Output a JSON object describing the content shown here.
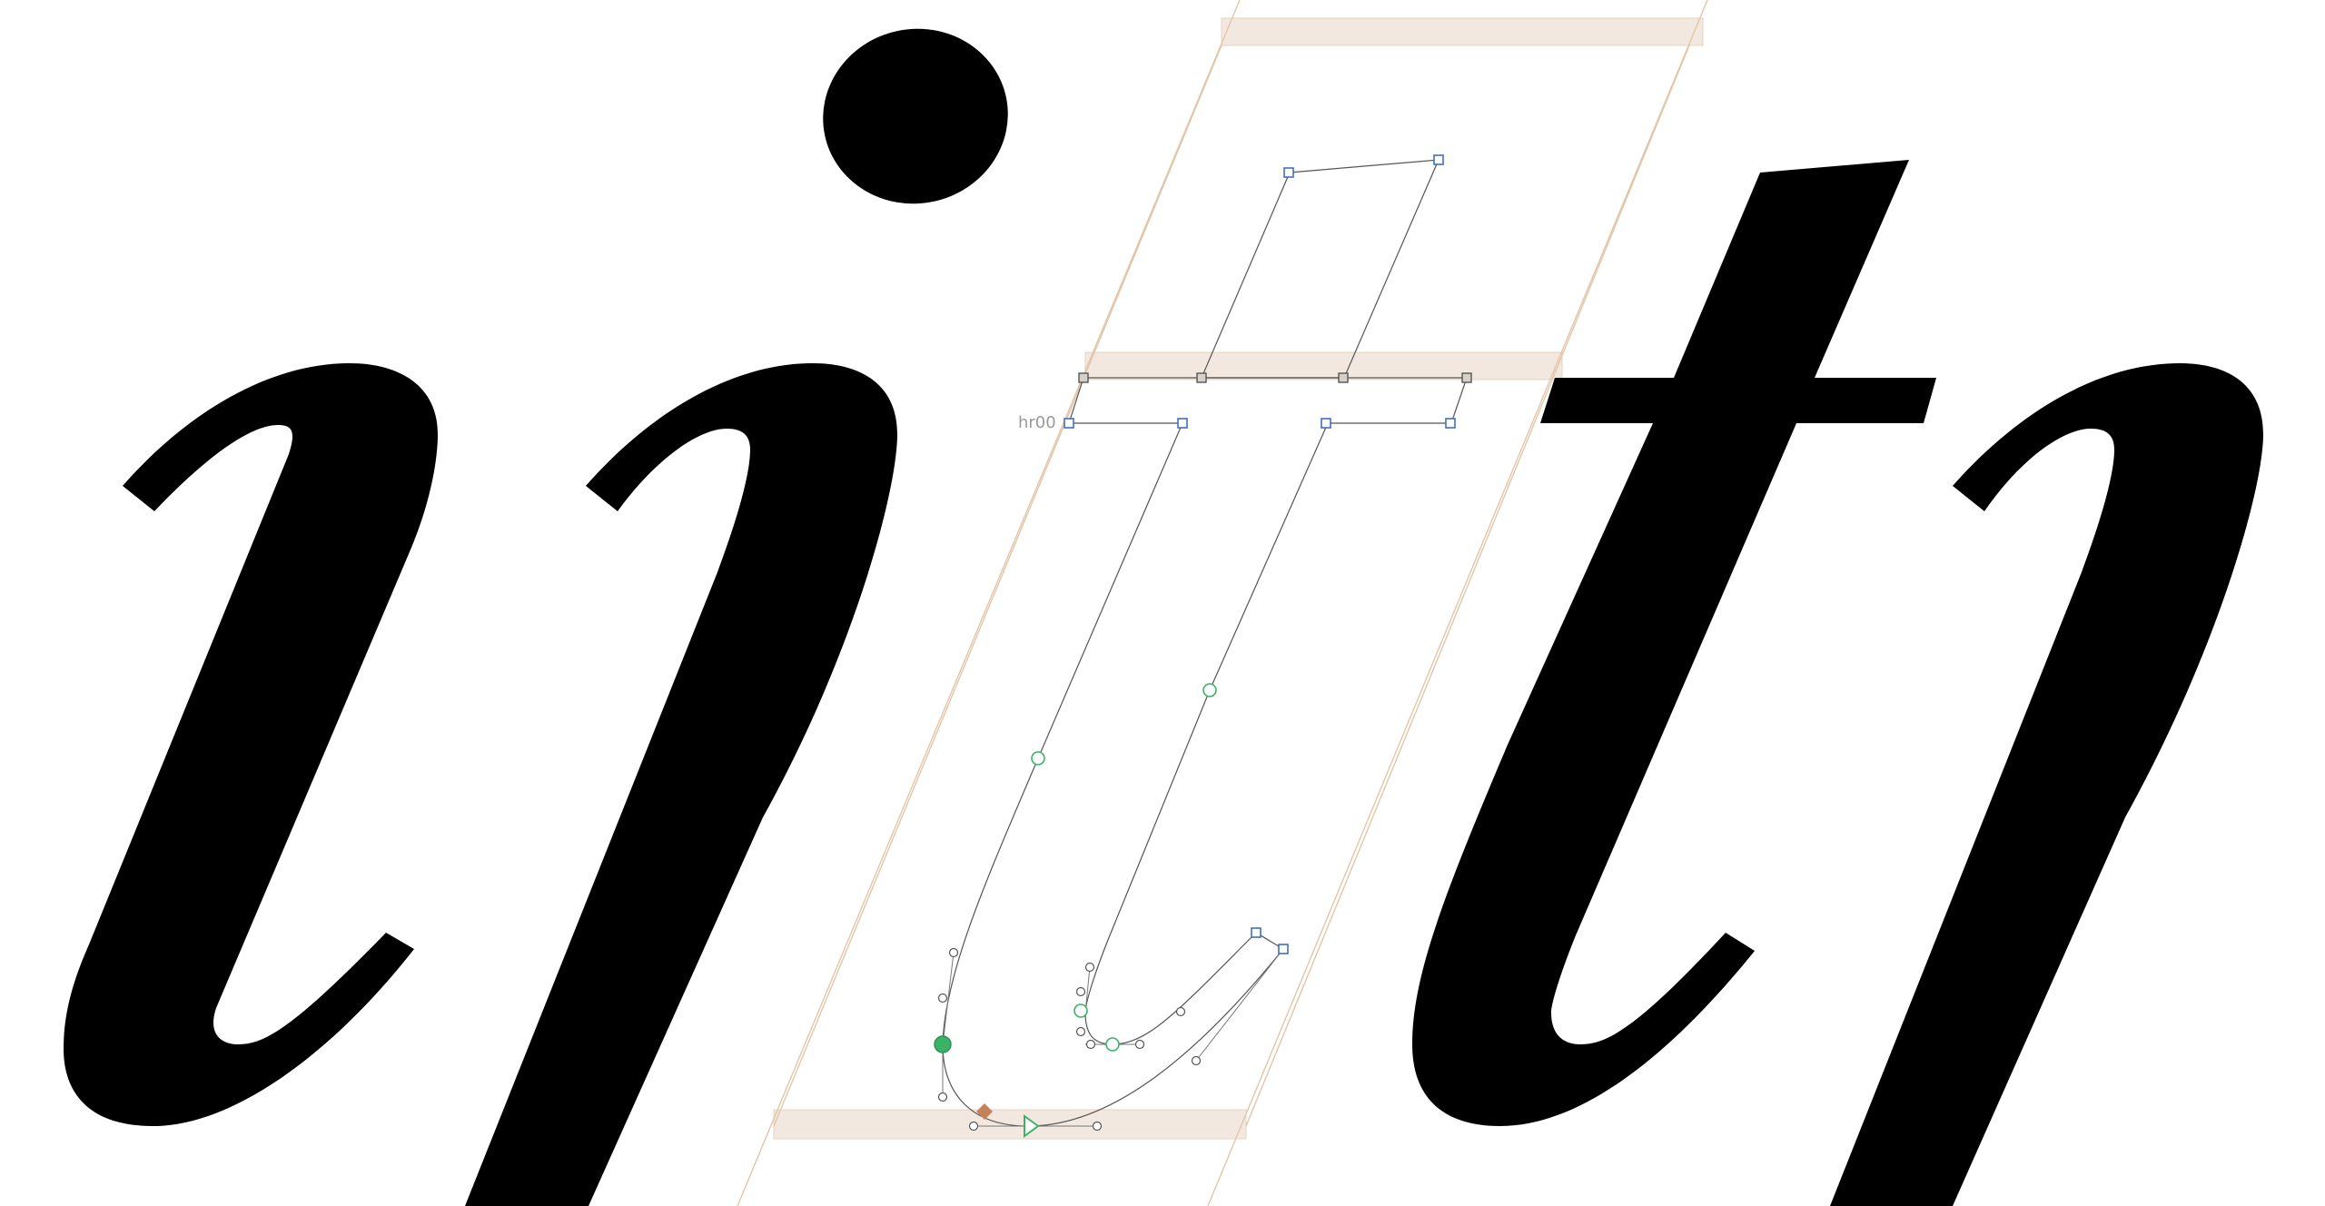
{
  "app": {
    "view": "glyph-edit-canvas",
    "preview_text": "iith",
    "active_glyph": "i (dotless)",
    "guide_label": "hr00"
  },
  "colors": {
    "ink": "#000000",
    "background": "#ffffff",
    "metric_band": "#f2e8df",
    "metric_line": "#e2c6a8",
    "node_corner": "#3f6fbf",
    "node_smooth": "#3bb366",
    "start_marker": "#3bb366",
    "anchor_marker": "#c4825a",
    "outline": "#555555"
  },
  "icons": {
    "corner_node": "square-node-icon",
    "smooth_node": "circle-node-icon",
    "off_curve": "handle-icon",
    "start_point": "start-triangle-icon",
    "anchor": "anchor-diamond-icon"
  }
}
